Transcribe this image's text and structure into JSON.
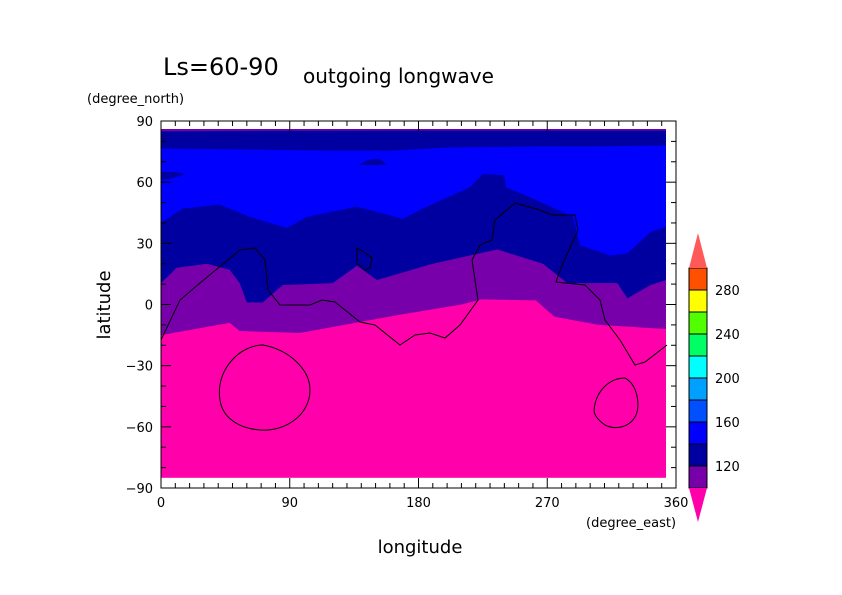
{
  "chart_data": {
    "type": "heatmap",
    "title_main": "Ls=60-90",
    "title_sub": "outgoing longwave",
    "xlabel": "longitude",
    "ylabel": "latitude",
    "xunits": "(degree_east)",
    "yunits": "(degree_north)",
    "xlim": [
      0,
      360
    ],
    "ylim": [
      -90,
      90
    ],
    "xticks": [
      0,
      90,
      180,
      270,
      360
    ],
    "yticks": [
      -90,
      -60,
      -30,
      0,
      30,
      60,
      90
    ],
    "colorbar": {
      "levels": [
        100,
        120,
        140,
        160,
        180,
        200,
        220,
        240,
        260,
        280,
        300
      ],
      "labels": [
        120,
        160,
        200,
        240,
        280
      ],
      "under_color": "#ff00aa",
      "over_color": "#ff5a5a",
      "colors": [
        "#7800aa",
        "#0000a0",
        "#0000ff",
        "#0050ff",
        "#00a0ff",
        "#00ffff",
        "#00ff64",
        "#50ff00",
        "#ffff00",
        "#ff5000"
      ]
    },
    "fill_lat_range": [
      -85,
      86
    ],
    "fill_lon_range": [
      0,
      353
    ],
    "contours": {
      "c100": [
        [
          0,
          -15
        ],
        [
          48,
          -9
        ],
        [
          55,
          -13
        ],
        [
          97,
          -14
        ],
        [
          167,
          -5
        ],
        [
          210,
          0
        ],
        [
          224,
          2.5
        ],
        [
          262,
          2
        ],
        [
          275,
          -6
        ],
        [
          306,
          -10
        ],
        [
          353,
          -12
        ]
      ],
      "c120": [
        [
          0,
          10.5
        ],
        [
          11,
          18
        ],
        [
          32,
          20
        ],
        [
          48,
          17
        ],
        [
          55,
          10.5
        ],
        [
          60,
          1
        ],
        [
          71,
          1
        ],
        [
          85,
          9.5
        ],
        [
          120,
          10.5
        ],
        [
          137,
          19
        ],
        [
          151,
          12
        ],
        [
          190,
          20
        ],
        [
          235,
          27
        ],
        [
          267,
          20
        ],
        [
          284,
          10.5
        ],
        [
          319,
          10.5
        ],
        [
          326,
          3
        ],
        [
          342,
          9.5
        ],
        [
          353,
          12
        ]
      ],
      "c140": [
        [
          0,
          40
        ],
        [
          15,
          47
        ],
        [
          41,
          49
        ],
        [
          62,
          43
        ],
        [
          88,
          37.5
        ],
        [
          102,
          43
        ],
        [
          137,
          48
        ],
        [
          169,
          42
        ],
        [
          183,
          47
        ],
        [
          216,
          57.5
        ],
        [
          225,
          64
        ],
        [
          240,
          63.5
        ],
        [
          241,
          57.5
        ],
        [
          260,
          52
        ],
        [
          288,
          43
        ],
        [
          293,
          29
        ],
        [
          314,
          24
        ],
        [
          326,
          25
        ],
        [
          342,
          35.5
        ],
        [
          353,
          38
        ]
      ],
      "c140_north": [
        [
          0,
          76.5
        ],
        [
          60,
          76
        ],
        [
          120,
          75.5
        ],
        [
          160,
          75.5
        ],
        [
          200,
          77
        ],
        [
          260,
          77.5
        ],
        [
          300,
          77.5
        ],
        [
          353,
          78
        ]
      ],
      "c120_north": [
        [
          0,
          85
        ],
        [
          100,
          85.2
        ],
        [
          200,
          85.3
        ],
        [
          353,
          85.3
        ]
      ],
      "islands_140": [
        [
          [
            0,
            61
          ],
          [
            8,
            62
          ],
          [
            17,
            64
          ],
          [
            10,
            65
          ],
          [
            0,
            65
          ]
        ],
        [
          [
            138,
            68.5
          ],
          [
            145,
            71
          ],
          [
            152,
            71.5
          ],
          [
            159,
            68.5
          ]
        ]
      ]
    }
  }
}
